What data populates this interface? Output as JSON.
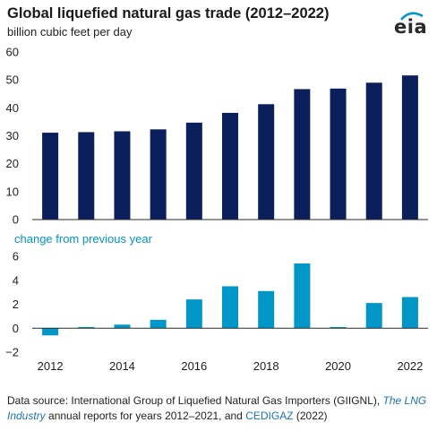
{
  "header": {
    "title": "Global liquefied natural gas trade (2012–2022)",
    "subtitle": "billion cubic feet per day",
    "logo_text": "eia"
  },
  "colors": {
    "primary_bar": "#0b1f5c",
    "change_bar": "#0096c8",
    "axis": "#2a2a2a",
    "link": "#1c73b5"
  },
  "chart_data": [
    {
      "type": "bar",
      "title": "Global liquefied natural gas trade (2012–2022)",
      "ylabel": "billion cubic feet per day",
      "categories": [
        "2012",
        "2013",
        "2014",
        "2015",
        "2016",
        "2017",
        "2018",
        "2019",
        "2020",
        "2021",
        "2022"
      ],
      "values": [
        31.1,
        31.3,
        31.6,
        32.3,
        34.7,
        38.2,
        41.3,
        46.7,
        46.9,
        49.0,
        51.6
      ],
      "ylim": [
        0,
        60
      ],
      "yticks": [
        0,
        10,
        20,
        30,
        40,
        50,
        60
      ],
      "grid": false
    },
    {
      "type": "bar",
      "title": "change from previous year",
      "categories": [
        "2012",
        "2013",
        "2014",
        "2015",
        "2016",
        "2017",
        "2018",
        "2019",
        "2020",
        "2021",
        "2022"
      ],
      "values": [
        -0.6,
        0.1,
        0.3,
        0.7,
        2.4,
        3.5,
        3.1,
        5.4,
        0.1,
        2.1,
        2.6
      ],
      "ylim": [
        -2,
        6
      ],
      "yticks": [
        -2,
        0,
        2,
        4,
        6
      ],
      "xticks": [
        "2012",
        "2014",
        "2016",
        "2018",
        "2020",
        "2022"
      ],
      "grid": false
    }
  ],
  "source": {
    "prefix": "Data source: International Group of Liquefied Natural Gas Importers (GIIGNL), ",
    "italic_link": "The LNG Industry",
    "middle": " annual reports for years 2012–2021, and ",
    "link": "CEDIGAZ",
    "suffix": " (2022)"
  }
}
